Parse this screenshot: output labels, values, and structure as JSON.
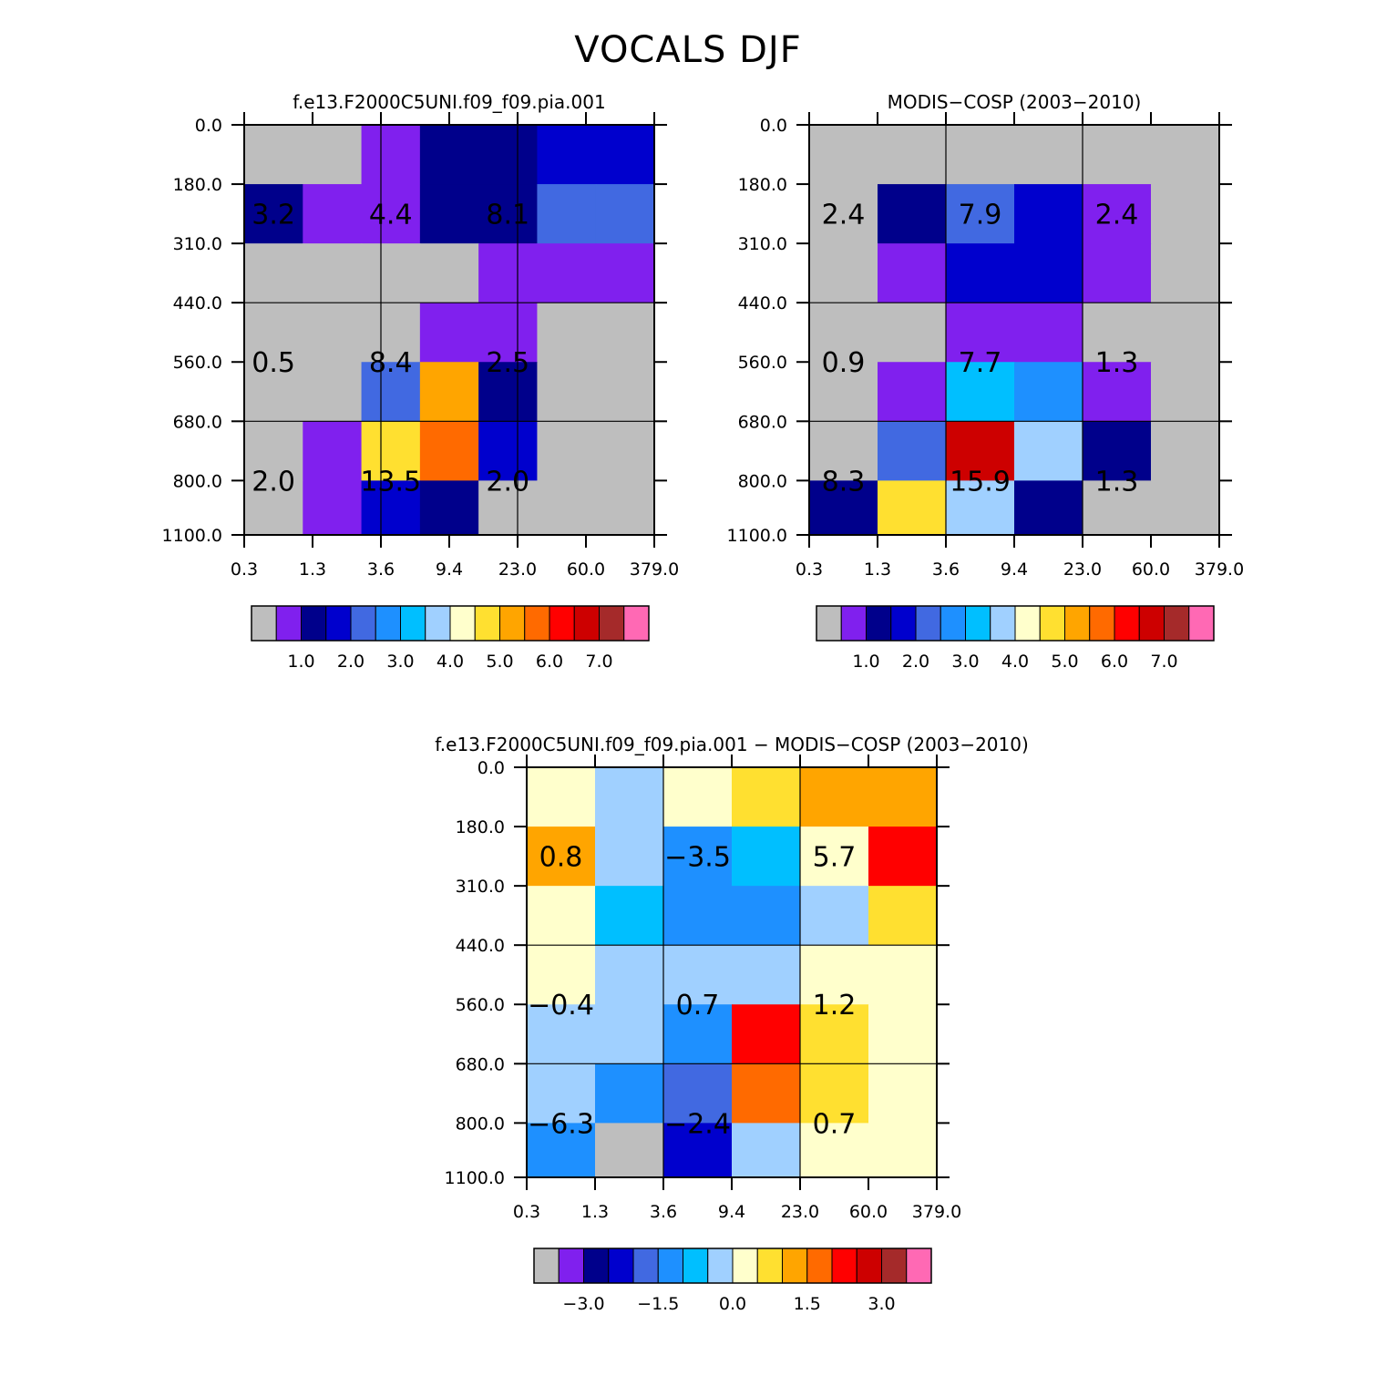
{
  "title": "VOCALS DJF",
  "chart_data": [
    {
      "type": "heatmap",
      "title": "f.e13.F2000C5UNI.f09_f09.pia.001",
      "x_tick_labels": [
        "0.3",
        "1.3",
        "3.6",
        "9.4",
        "23.0",
        "60.0",
        "379.0"
      ],
      "y_tick_labels": [
        "0.0",
        "180.0",
        "310.0",
        "440.0",
        "560.0",
        "680.0",
        "800.0",
        "1100.0"
      ],
      "cells": [
        [
          0,
          0,
          1,
          2,
          2,
          3,
          3
        ],
        [
          2,
          1,
          1,
          2,
          2,
          4,
          4
        ],
        [
          0,
          0,
          0,
          0,
          1,
          1,
          1
        ],
        [
          0,
          0,
          0,
          1,
          1,
          0,
          0
        ],
        [
          0,
          0,
          4,
          10,
          2,
          0,
          0
        ],
        [
          0,
          1,
          9,
          11,
          3,
          0,
          0
        ],
        [
          0,
          1,
          3,
          2,
          0,
          0,
          0
        ]
      ],
      "cell_labels": [
        {
          "text": "3.2",
          "col": 0.5,
          "row": 1.5
        },
        {
          "text": "4.4",
          "col": 2.5,
          "row": 1.5
        },
        {
          "text": "8.1",
          "col": 4.5,
          "row": 1.5
        },
        {
          "text": "0.5",
          "col": 0.5,
          "row": 4.0
        },
        {
          "text": "8.4",
          "col": 2.5,
          "row": 4.0
        },
        {
          "text": "2.5",
          "col": 4.5,
          "row": 4.0
        },
        {
          "text": "2.0",
          "col": 0.5,
          "row": 6.0
        },
        {
          "text": "13.5",
          "col": 2.5,
          "row": 6.0
        },
        {
          "text": "2.0",
          "col": 4.5,
          "row": 6.0
        }
      ],
      "colorbar": {
        "colors": [
          "#bebebe",
          "#8020ee",
          "#00008b",
          "#0000cd",
          "#4169e1",
          "#1e90ff",
          "#00bfff",
          "#a0d0ff",
          "#ffffcc",
          "#ffe030",
          "#ffa500",
          "#ff6a00",
          "#ff0000",
          "#cd0000",
          "#a52a2a",
          "#ff69b4"
        ],
        "labels": [
          "1.0",
          "2.0",
          "3.0",
          "4.0",
          "5.0",
          "6.0",
          "7.0"
        ],
        "label_boxes": [
          2,
          4,
          6,
          8,
          10,
          12,
          14
        ]
      }
    },
    {
      "type": "heatmap",
      "title": "MODIS-COSP (2003-2010)",
      "x_tick_labels": [
        "0.3",
        "1.3",
        "3.6",
        "9.4",
        "23.0",
        "60.0",
        "379.0"
      ],
      "y_tick_labels": [
        "0.0",
        "180.0",
        "310.0",
        "440.0",
        "560.0",
        "680.0",
        "800.0",
        "1100.0"
      ],
      "cells": [
        [
          0,
          0,
          0,
          0,
          0,
          0
        ],
        [
          0,
          2,
          4,
          3,
          1,
          0
        ],
        [
          0,
          1,
          3,
          3,
          1,
          0
        ],
        [
          0,
          0,
          1,
          1,
          0,
          0
        ],
        [
          0,
          1,
          6,
          5,
          1,
          0
        ],
        [
          0,
          4,
          13,
          7,
          2,
          0
        ],
        [
          2,
          9,
          7,
          2,
          0,
          0
        ]
      ],
      "cell_labels": [
        {
          "text": "2.4",
          "col": 0.5,
          "row": 1.5
        },
        {
          "text": "7.9",
          "col": 2.5,
          "row": 1.5
        },
        {
          "text": "2.4",
          "col": 4.5,
          "row": 1.5
        },
        {
          "text": "0.9",
          "col": 0.5,
          "row": 4.0
        },
        {
          "text": "7.7",
          "col": 2.5,
          "row": 4.0
        },
        {
          "text": "1.3",
          "col": 4.5,
          "row": 4.0
        },
        {
          "text": "8.3",
          "col": 0.5,
          "row": 6.0
        },
        {
          "text": "15.9",
          "col": 2.5,
          "row": 6.0
        },
        {
          "text": "1.3",
          "col": 4.5,
          "row": 6.0
        }
      ],
      "colorbar": {
        "colors": [
          "#bebebe",
          "#8020ee",
          "#00008b",
          "#0000cd",
          "#4169e1",
          "#1e90ff",
          "#00bfff",
          "#a0d0ff",
          "#ffffcc",
          "#ffe030",
          "#ffa500",
          "#ff6a00",
          "#ff0000",
          "#cd0000",
          "#a52a2a",
          "#ff69b4"
        ],
        "labels": [
          "1.0",
          "2.0",
          "3.0",
          "4.0",
          "5.0",
          "6.0",
          "7.0"
        ],
        "label_boxes": [
          2,
          4,
          6,
          8,
          10,
          12,
          14
        ]
      }
    },
    {
      "type": "heatmap",
      "title": "f.e13.F2000C5UNI.f09_f09.pia.001 - MODIS-COSP (2003-2010)",
      "x_tick_labels": [
        "0.3",
        "1.3",
        "3.6",
        "9.4",
        "23.0",
        "60.0",
        "379.0"
      ],
      "y_tick_labels": [
        "0.0",
        "180.0",
        "310.0",
        "440.0",
        "560.0",
        "680.0",
        "800.0",
        "1100.0"
      ],
      "cells": [
        [
          8,
          7,
          8,
          9,
          10,
          10
        ],
        [
          10,
          7,
          5,
          6,
          8,
          12
        ],
        [
          8,
          6,
          5,
          5,
          7,
          9
        ],
        [
          8,
          7,
          7,
          7,
          8,
          8
        ],
        [
          7,
          7,
          5,
          12,
          9,
          8
        ],
        [
          7,
          5,
          4,
          11,
          9,
          8
        ],
        [
          5,
          0,
          3,
          7,
          8,
          8
        ]
      ],
      "cell_labels": [
        {
          "text": "0.8",
          "col": 0.5,
          "row": 1.5
        },
        {
          "text": "-3.5",
          "col": 2.5,
          "row": 1.5
        },
        {
          "text": "5.7",
          "col": 4.5,
          "row": 1.5
        },
        {
          "text": "-0.4",
          "col": 0.5,
          "row": 4.0
        },
        {
          "text": "0.7",
          "col": 2.5,
          "row": 4.0
        },
        {
          "text": "1.2",
          "col": 4.5,
          "row": 4.0
        },
        {
          "text": "-6.3",
          "col": 0.5,
          "row": 6.0
        },
        {
          "text": "-2.4",
          "col": 2.5,
          "row": 6.0
        },
        {
          "text": "0.7",
          "col": 4.5,
          "row": 6.0
        }
      ],
      "colorbar": {
        "colors": [
          "#bebebe",
          "#8020ee",
          "#00008b",
          "#0000cd",
          "#4169e1",
          "#1e90ff",
          "#00bfff",
          "#a0d0ff",
          "#ffffcc",
          "#ffe030",
          "#ffa500",
          "#ff6a00",
          "#ff0000",
          "#cd0000",
          "#a52a2a",
          "#ff69b4"
        ],
        "labels": [
          "-3.0",
          "-1.5",
          "0.0",
          "1.5",
          "3.0"
        ],
        "label_boxes": [
          2,
          5,
          8,
          11,
          14
        ]
      }
    }
  ]
}
